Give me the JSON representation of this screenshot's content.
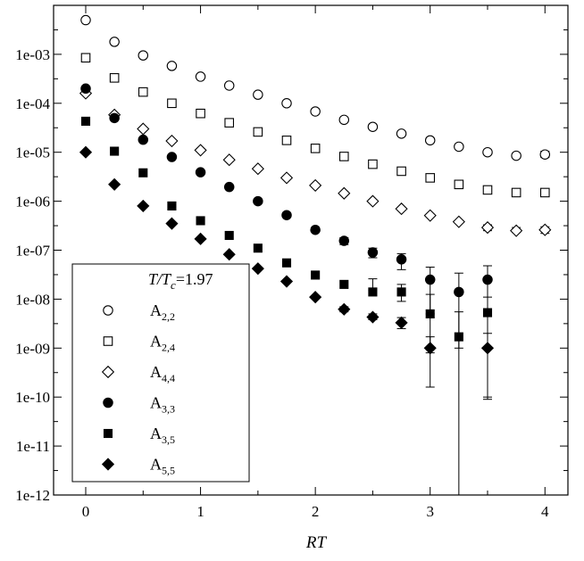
{
  "chart_data": {
    "type": "scatter",
    "xlabel": "RT",
    "ylabel": "",
    "xlim": [
      -0.28,
      4.2
    ],
    "ylim": [
      1e-12,
      0.01
    ],
    "yscale": "log",
    "x_ticks": [
      0,
      1,
      2,
      3,
      4
    ],
    "x_tick_labels": [
      "0",
      "1",
      "2",
      "3",
      "4"
    ],
    "y_ticks": [
      1e-12,
      1e-11,
      1e-10,
      1e-09,
      1e-08,
      1e-07,
      1e-06,
      1e-05,
      0.0001,
      0.001
    ],
    "y_tick_labels": [
      "1e-12",
      "1e-11",
      "1e-10",
      "1e-09",
      "1e-08",
      "1e-07",
      "1e-06",
      "1e-05",
      "0.0001",
      "0.001"
    ],
    "y_tick_display": [
      "1e-12",
      "1e-11",
      "1e-10",
      "1e-09",
      "1e-08",
      "1e-07",
      "1e-06",
      "1e-05",
      "1e-04",
      "1e-03"
    ],
    "grid": false,
    "legend": {
      "placement": "bottom-left",
      "title_italic": "T/T",
      "title_sub": "c",
      "title_value": "=1.97"
    },
    "series": [
      {
        "name": "A2,2",
        "label_main": "A",
        "label_sub": "2,2",
        "marker": "circle",
        "filled": false,
        "x": [
          0,
          0.25,
          0.5,
          0.75,
          1.0,
          1.25,
          1.5,
          1.75,
          2.0,
          2.25,
          2.5,
          2.75,
          3.0,
          3.25,
          3.5,
          3.75,
          4.0
        ],
        "y": [
          0.005,
          0.0018,
          0.00095,
          0.00058,
          0.00035,
          0.00023,
          0.00015,
          0.0001,
          6.8e-05,
          4.6e-05,
          3.3e-05,
          2.4e-05,
          1.75e-05,
          1.3e-05,
          1e-05,
          8.5e-06,
          9e-06
        ],
        "err_low": [
          null,
          null,
          null,
          null,
          null,
          null,
          null,
          null,
          null,
          null,
          null,
          null,
          null,
          null,
          null,
          7.8e-06,
          7.8e-06
        ],
        "err_high": [
          null,
          null,
          null,
          null,
          null,
          null,
          null,
          null,
          null,
          null,
          null,
          null,
          null,
          null,
          null,
          9.5e-06,
          1.05e-05
        ]
      },
      {
        "name": "A2,4",
        "label_main": "A",
        "label_sub": "2,4",
        "marker": "square",
        "filled": false,
        "x": [
          0,
          0.25,
          0.5,
          0.75,
          1.0,
          1.25,
          1.5,
          1.75,
          2.0,
          2.25,
          2.5,
          2.75,
          3.0,
          3.25,
          3.5,
          3.75,
          4.0
        ],
        "y": [
          0.00085,
          0.00033,
          0.00017,
          0.0001,
          6.2e-05,
          4e-05,
          2.6e-05,
          1.75e-05,
          1.2e-05,
          8.2e-06,
          5.7e-06,
          4.1e-06,
          3e-06,
          2.2e-06,
          1.7e-06,
          1.5e-06,
          1.5e-06
        ],
        "err_low": [
          null,
          null,
          null,
          null,
          null,
          null,
          null,
          null,
          null,
          null,
          null,
          null,
          null,
          null,
          null,
          null,
          null
        ],
        "err_high": [
          null,
          null,
          null,
          null,
          null,
          null,
          null,
          null,
          null,
          null,
          null,
          null,
          null,
          null,
          null,
          null,
          null
        ]
      },
      {
        "name": "A4,4",
        "label_main": "A",
        "label_sub": "4,4",
        "marker": "diamond",
        "filled": false,
        "x": [
          0,
          0.25,
          0.5,
          0.75,
          1.0,
          1.25,
          1.5,
          1.75,
          2.0,
          2.25,
          2.5,
          2.75,
          3.0,
          3.25,
          3.5,
          3.75,
          4.0
        ],
        "y": [
          0.00016,
          5.8e-05,
          3e-05,
          1.7e-05,
          1.1e-05,
          7e-06,
          4.6e-06,
          3e-06,
          2.1e-06,
          1.45e-06,
          1e-06,
          7e-07,
          5.1e-07,
          3.8e-07,
          2.9e-07,
          2.5e-07,
          2.6e-07
        ],
        "err_low": [
          null,
          null,
          null,
          null,
          null,
          null,
          null,
          null,
          null,
          null,
          null,
          null,
          null,
          null,
          2.5e-07,
          2.3e-07,
          2.2e-07
        ],
        "err_high": [
          null,
          null,
          null,
          null,
          null,
          null,
          null,
          null,
          null,
          null,
          null,
          null,
          null,
          null,
          3.3e-07,
          2.9e-07,
          3e-07
        ]
      },
      {
        "name": "A3,3",
        "label_main": "A",
        "label_sub": "3,3",
        "marker": "circle",
        "filled": true,
        "x": [
          0,
          0.25,
          0.5,
          0.75,
          1.0,
          1.25,
          1.5,
          1.75,
          2.0,
          2.25,
          2.5,
          2.75,
          3.0,
          3.25,
          3.5
        ],
        "y": [
          0.0002,
          5e-05,
          1.8e-05,
          8e-06,
          3.9e-06,
          1.95e-06,
          1e-06,
          5.2e-07,
          2.6e-07,
          1.55e-07,
          9e-08,
          6.5e-08,
          2.5e-08,
          1.4e-08,
          2.5e-08
        ],
        "err_low": [
          null,
          null,
          null,
          null,
          null,
          null,
          null,
          null,
          null,
          1.3e-07,
          7e-08,
          4e-08,
          5e-09,
          1e-09,
          5e-09
        ],
        "err_high": [
          null,
          null,
          null,
          null,
          null,
          null,
          null,
          null,
          null,
          1.8e-07,
          1.1e-07,
          8.5e-08,
          4.5e-08,
          3.4e-08,
          4.8e-08
        ]
      },
      {
        "name": "A3,5",
        "label_main": "A",
        "label_sub": "3,5",
        "marker": "square",
        "filled": true,
        "x": [
          0,
          0.25,
          0.5,
          0.75,
          1.0,
          1.25,
          1.5,
          1.75,
          2.0,
          2.25,
          2.5,
          2.75,
          3.0,
          3.25,
          3.5
        ],
        "y": [
          4.3e-05,
          1.05e-05,
          3.8e-06,
          8e-07,
          4e-07,
          2e-07,
          1.1e-07,
          5.5e-08,
          3.1e-08,
          2e-08,
          1.4e-08,
          1.4e-08,
          5e-09,
          1.7e-09,
          5.3e-09
        ],
        "err_low": [
          null,
          null,
          null,
          null,
          null,
          null,
          null,
          null,
          null,
          null,
          1.5e-08,
          9e-09,
          8e-10,
          5e-13,
          1e-10
        ],
        "err_high": [
          null,
          null,
          null,
          null,
          null,
          null,
          null,
          null,
          null,
          null,
          2.6e-08,
          2e-08,
          1.25e-08,
          5.5e-09,
          1.1e-08
        ]
      },
      {
        "name": "A5,5",
        "label_main": "A",
        "label_sub": "5,5",
        "marker": "diamond",
        "filled": true,
        "x": [
          0,
          0.25,
          0.5,
          0.75,
          1.0,
          1.25,
          1.5,
          1.75,
          2.0,
          2.25,
          2.5,
          2.75,
          3.0,
          3.5
        ],
        "y": [
          1e-05,
          2.2e-06,
          8e-07,
          3.5e-07,
          1.7e-07,
          8.2e-08,
          4.2e-08,
          2.3e-08,
          1.1e-08,
          6.2e-09,
          4.3e-09,
          3.3e-09,
          1e-09,
          1e-09
        ],
        "err_low": [
          null,
          null,
          null,
          null,
          null,
          null,
          null,
          null,
          null,
          5.5e-09,
          3.8e-09,
          2.5e-09,
          1.6e-10,
          9e-11
        ],
        "err_high": [
          null,
          null,
          null,
          null,
          null,
          null,
          null,
          null,
          null,
          7e-09,
          5e-09,
          4.2e-09,
          1.7e-09,
          2e-09
        ]
      }
    ]
  }
}
